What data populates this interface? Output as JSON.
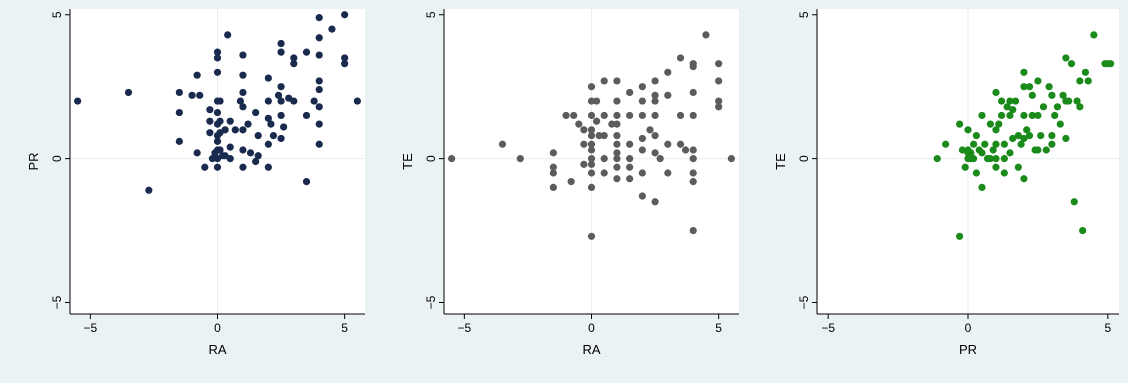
{
  "chart_data": [
    {
      "type": "scatter",
      "xlabel": "RA",
      "ylabel": "PR",
      "xlim": [
        -5.8,
        5.8
      ],
      "ylim": [
        -5.4,
        5.2
      ],
      "xticks": [
        -5,
        0,
        5
      ],
      "yticks": [
        -5,
        0,
        5
      ],
      "xtick_labels": [
        "−5",
        "0",
        "5"
      ],
      "ytick_labels": [
        "−5",
        "0",
        "5"
      ],
      "grid": "lines at 0 only",
      "legend": "none",
      "marker_color": "#1a2a4e",
      "x": [
        -5.5,
        -3.5,
        -2.7,
        -1.5,
        -1.5,
        -1.5,
        -1.0,
        -0.8,
        -0.8,
        -0.7,
        -0.5,
        -0.3,
        -0.3,
        -0.3,
        -0.2,
        -0.1,
        0.0,
        0.0,
        0.0,
        0.0,
        0.0,
        0.0,
        0.0,
        0.0,
        0.0,
        0.0,
        0.0,
        0.1,
        0.1,
        0.1,
        0.1,
        0.2,
        0.3,
        0.3,
        0.4,
        0.5,
        0.5,
        0.5,
        0.7,
        0.9,
        1.0,
        1.0,
        1.0,
        1.0,
        1.0,
        1.0,
        1.0,
        1.2,
        1.3,
        1.5,
        1.5,
        1.6,
        1.6,
        2.0,
        2.0,
        2.0,
        2.0,
        2.0,
        2.1,
        2.2,
        2.4,
        2.5,
        2.5,
        2.5,
        2.5,
        2.5,
        2.5,
        2.6,
        2.8,
        3.0,
        3.0,
        3.0,
        3.5,
        3.5,
        3.5,
        3.8,
        4.0,
        4.0,
        4.0,
        4.0,
        4.0,
        4.0,
        4.0,
        4.0,
        4.5,
        5.0,
        5.0,
        5.0,
        5.5
      ],
      "y": [
        2.0,
        2.3,
        -1.1,
        2.3,
        1.6,
        0.6,
        2.2,
        0.2,
        2.9,
        2.2,
        -0.3,
        1.7,
        1.3,
        0.9,
        0.0,
        0.2,
        3.7,
        3.5,
        3.0,
        2.0,
        1.6,
        1.2,
        0.8,
        0.6,
        0.3,
        0.0,
        -0.3,
        2.0,
        1.3,
        0.9,
        0.3,
        0.1,
        1.0,
        0.1,
        4.3,
        1.3,
        0.4,
        0.0,
        1.0,
        2.0,
        3.6,
        2.9,
        2.3,
        1.8,
        1.0,
        0.3,
        -0.3,
        1.2,
        0.2,
        1.6,
        -0.1,
        0.8,
        0.1,
        2.8,
        2.0,
        1.4,
        0.5,
        -0.3,
        1.2,
        0.8,
        2.2,
        4.0,
        3.7,
        2.5,
        2.0,
        1.5,
        0.7,
        1.1,
        2.1,
        3.5,
        3.3,
        2.0,
        3.7,
        1.5,
        -0.8,
        2.0,
        4.9,
        4.2,
        3.6,
        2.7,
        2.4,
        1.8,
        1.2,
        0.5,
        4.5,
        5.0,
        3.5,
        3.3,
        2.0
      ]
    },
    {
      "type": "scatter",
      "xlabel": "RA",
      "ylabel": "TE",
      "xlim": [
        -5.8,
        5.8
      ],
      "ylim": [
        -5.4,
        5.2
      ],
      "xticks": [
        -5,
        0,
        5
      ],
      "yticks": [
        -5,
        0,
        5
      ],
      "xtick_labels": [
        "−5",
        "0",
        "5"
      ],
      "ytick_labels": [
        "−5",
        "0",
        "5"
      ],
      "grid": "lines at 0 only",
      "legend": "none",
      "marker_color": "#5c5c5c",
      "x": [
        -5.5,
        -3.5,
        -2.8,
        -1.5,
        -1.5,
        -1.5,
        -1.5,
        -1.0,
        -0.8,
        -0.7,
        -0.5,
        -0.3,
        -0.3,
        -0.3,
        0.0,
        0.0,
        0.0,
        0.0,
        0.0,
        0.0,
        0.0,
        0.0,
        0.0,
        0.0,
        0.0,
        0.0,
        0.2,
        0.2,
        0.3,
        0.5,
        0.5,
        0.5,
        0.5,
        0.5,
        0.8,
        1.0,
        1.0,
        1.0,
        1.0,
        1.0,
        1.0,
        1.0,
        1.0,
        1.0,
        1.0,
        1.5,
        1.5,
        1.5,
        1.5,
        1.5,
        1.5,
        2.0,
        2.0,
        2.0,
        2.0,
        2.0,
        2.0,
        2.0,
        2.3,
        2.5,
        2.5,
        2.5,
        2.5,
        2.5,
        2.5,
        2.5,
        2.7,
        3.0,
        3.0,
        3.0,
        3.0,
        3.5,
        3.5,
        3.5,
        3.7,
        4.0,
        4.0,
        4.0,
        4.0,
        4.0,
        4.0,
        4.0,
        4.0,
        4.0,
        4.5,
        5.0,
        5.0,
        5.0,
        5.0,
        5.5
      ],
      "y": [
        0.0,
        0.5,
        0.0,
        0.2,
        -0.3,
        -0.5,
        -1.0,
        1.5,
        -0.8,
        1.5,
        1.2,
        1.0,
        0.5,
        -0.2,
        2.5,
        2.0,
        1.5,
        1.0,
        0.8,
        0.5,
        0.3,
        0.0,
        -0.2,
        -0.5,
        -1.0,
        -2.7,
        2.0,
        1.3,
        0.8,
        2.7,
        1.5,
        0.8,
        0.0,
        -0.5,
        1.2,
        2.7,
        2.0,
        1.5,
        1.2,
        0.8,
        0.5,
        0.2,
        0.0,
        -0.3,
        -0.7,
        2.3,
        1.5,
        0.5,
        0.0,
        -0.3,
        -0.7,
        2.5,
        2.0,
        1.5,
        0.7,
        0.3,
        -0.5,
        -1.3,
        1.0,
        2.7,
        2.2,
        2.0,
        1.5,
        0.8,
        0.2,
        -1.5,
        0.0,
        3.0,
        2.2,
        0.5,
        -0.5,
        3.5,
        1.5,
        0.5,
        0.3,
        3.3,
        3.2,
        2.3,
        1.5,
        0.3,
        0.0,
        -0.5,
        -0.8,
        -2.5,
        4.3,
        3.3,
        2.7,
        2.0,
        1.8,
        0.0
      ]
    },
    {
      "type": "scatter",
      "xlabel": "PR",
      "ylabel": "TE",
      "xlim": [
        -5.4,
        5.4
      ],
      "ylim": [
        -5.4,
        5.2
      ],
      "xticks": [
        -5,
        0,
        5
      ],
      "yticks": [
        -5,
        0,
        5
      ],
      "xtick_labels": [
        "−5",
        "0",
        "5"
      ],
      "ytick_labels": [
        "−5",
        "0",
        "5"
      ],
      "grid": "lines at 0 only",
      "legend": "none",
      "marker_color": "#1a8a1a",
      "x": [
        -1.1,
        -0.8,
        -0.3,
        -0.3,
        -0.2,
        -0.1,
        0.0,
        0.0,
        0.0,
        0.0,
        0.1,
        0.1,
        0.2,
        0.2,
        0.3,
        0.3,
        0.4,
        0.5,
        0.5,
        0.5,
        0.6,
        0.7,
        0.8,
        0.8,
        0.9,
        1.0,
        1.0,
        1.0,
        1.0,
        1.0,
        1.1,
        1.2,
        1.2,
        1.3,
        1.3,
        1.3,
        1.4,
        1.5,
        1.5,
        1.5,
        1.6,
        1.6,
        1.7,
        1.8,
        1.8,
        1.9,
        2.0,
        2.0,
        2.0,
        2.0,
        2.0,
        2.1,
        2.2,
        2.2,
        2.3,
        2.3,
        2.4,
        2.5,
        2.5,
        2.5,
        2.6,
        2.7,
        2.8,
        2.9,
        3.0,
        3.0,
        3.0,
        3.1,
        3.2,
        3.3,
        3.4,
        3.5,
        3.5,
        3.5,
        3.6,
        3.7,
        3.8,
        3.9,
        4.0,
        4.0,
        4.1,
        4.2,
        4.3,
        4.5,
        4.9,
        5.0,
        5.1
      ],
      "y": [
        0.0,
        0.5,
        1.2,
        -2.7,
        0.3,
        -0.3,
        1.0,
        0.3,
        0.0,
        0.2,
        0.0,
        0.2,
        0.5,
        0.0,
        0.8,
        -0.5,
        0.3,
        1.5,
        0.2,
        -1.0,
        0.5,
        0.0,
        1.2,
        0.0,
        0.3,
        2.3,
        1.0,
        0.0,
        0.5,
        -0.3,
        1.2,
        2.0,
        1.5,
        0.5,
        0.0,
        -0.5,
        1.8,
        2.0,
        1.5,
        0.2,
        1.7,
        0.7,
        2.0,
        0.8,
        -0.3,
        0.5,
        3.0,
        2.5,
        1.5,
        0.7,
        -0.7,
        1.0,
        2.5,
        0.8,
        1.5,
        2.2,
        0.3,
        2.7,
        1.5,
        0.3,
        0.8,
        1.8,
        0.3,
        2.5,
        2.2,
        0.5,
        0.8,
        1.5,
        1.8,
        1.2,
        2.2,
        3.5,
        2.0,
        0.7,
        2.0,
        3.3,
        -1.5,
        2.0,
        2.7,
        1.8,
        -2.5,
        3.0,
        2.7,
        4.3,
        3.3,
        3.3,
        3.3
      ]
    }
  ]
}
